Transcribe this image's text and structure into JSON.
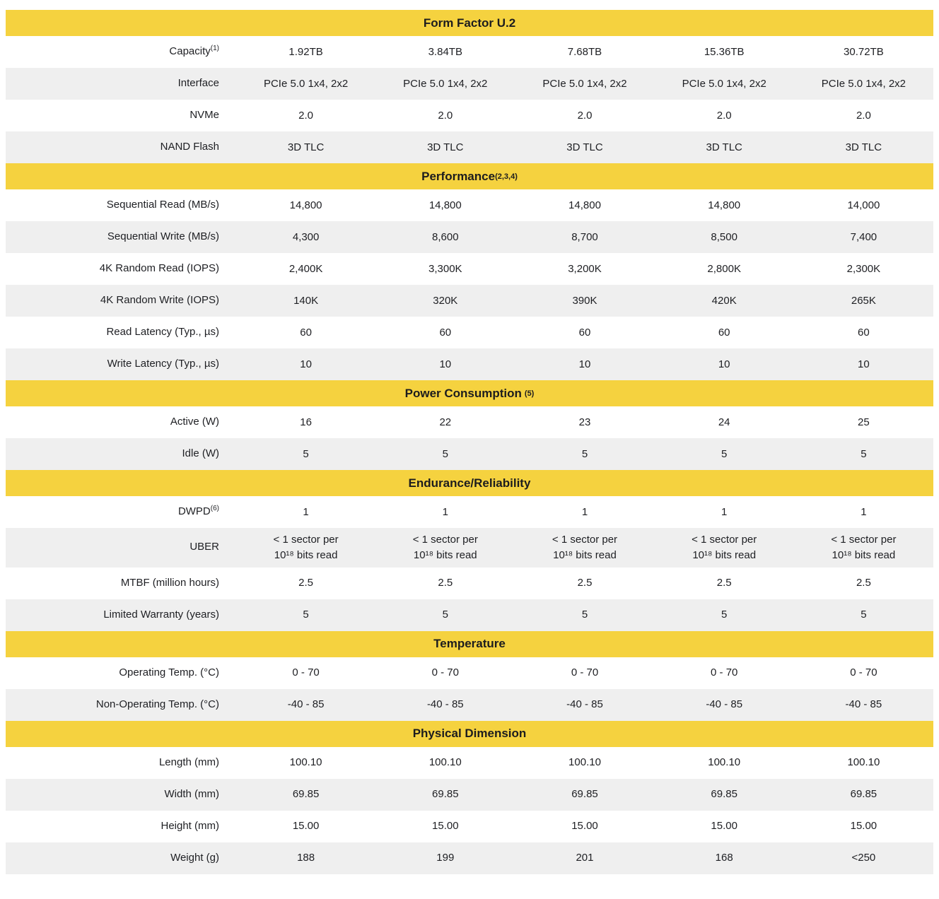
{
  "colors": {
    "section_header_bg": "#F5D23F",
    "row_alt_bg": "#EFEFEF",
    "text": "#1E1F23"
  },
  "table": {
    "sections": [
      {
        "header": "Form Factor U.2",
        "rows": [
          {
            "label": "Capacity",
            "sup": "(1)",
            "values": [
              "1.92TB",
              "3.84TB",
              "7.68TB",
              "15.36TB",
              "30.72TB"
            ]
          },
          {
            "label": "Interface",
            "values": [
              "PCIe 5.0 1x4, 2x2",
              "PCIe 5.0 1x4, 2x2",
              "PCIe 5.0 1x4, 2x2",
              "PCIe 5.0 1x4, 2x2",
              "PCIe 5.0 1x4, 2x2"
            ]
          },
          {
            "label": "NVMe",
            "values": [
              "2.0",
              "2.0",
              "2.0",
              "2.0",
              "2.0"
            ]
          },
          {
            "label": "NAND Flash",
            "values": [
              "3D TLC",
              "3D TLC",
              "3D TLC",
              "3D TLC",
              "3D TLC"
            ]
          }
        ]
      },
      {
        "header": "Performance",
        "header_sup": "(2,3,4)",
        "rows": [
          {
            "label": "Sequential Read (MB/s)",
            "values": [
              "14,800",
              "14,800",
              "14,800",
              "14,800",
              "14,000"
            ]
          },
          {
            "label": "Sequential Write (MB/s)",
            "values": [
              "4,300",
              "8,600",
              "8,700",
              "8,500",
              "7,400"
            ]
          },
          {
            "label": "4K Random Read (IOPS)",
            "values": [
              "2,400K",
              "3,300K",
              "3,200K",
              "2,800K",
              "2,300K"
            ]
          },
          {
            "label": "4K Random Write (IOPS)",
            "values": [
              "140K",
              "320K",
              "390K",
              "420K",
              "265K"
            ]
          },
          {
            "label": "Read Latency (Typ., µs)",
            "values": [
              "60",
              "60",
              "60",
              "60",
              "60"
            ]
          },
          {
            "label": "Write Latency (Typ., µs)",
            "values": [
              "10",
              "10",
              "10",
              "10",
              "10"
            ]
          }
        ]
      },
      {
        "header": "Power Consumption",
        "header_sup": "(5)",
        "header_sup_gap": true,
        "rows": [
          {
            "label": "Active (W)",
            "values": [
              "16",
              "22",
              "23",
              "24",
              "25"
            ]
          },
          {
            "label": "Idle (W)",
            "values": [
              "5",
              "5",
              "5",
              "5",
              "5"
            ]
          }
        ]
      },
      {
        "header": "Endurance/Reliability",
        "rows": [
          {
            "label": "DWPD",
            "sup": "(6)",
            "values": [
              "1",
              "1",
              "1",
              "1",
              "1"
            ]
          },
          {
            "label": "UBER",
            "values": [
              "< 1 sector per\n10¹⁸ bits read",
              "< 1 sector per\n10¹⁸ bits read",
              "< 1 sector per\n10¹⁸ bits read",
              "< 1 sector per\n10¹⁸ bits read",
              "< 1 sector per\n10¹⁸ bits read"
            ]
          },
          {
            "label": "MTBF (million hours)",
            "values": [
              "2.5",
              "2.5",
              "2.5",
              "2.5",
              "2.5"
            ]
          },
          {
            "label": "Limited Warranty (years)",
            "values": [
              "5",
              "5",
              "5",
              "5",
              "5"
            ]
          }
        ]
      },
      {
        "header": "Temperature",
        "rows": [
          {
            "label": "Operating Temp. (°C)",
            "values": [
              "0 - 70",
              "0 - 70",
              "0 - 70",
              "0 - 70",
              "0 - 70"
            ]
          },
          {
            "label": "Non-Operating Temp. (°C)",
            "values": [
              "-40 - 85",
              "-40 - 85",
              "-40 - 85",
              "-40 - 85",
              "-40 - 85"
            ]
          }
        ]
      },
      {
        "header": "Physical Dimension",
        "rows": [
          {
            "label": "Length (mm)",
            "values": [
              "100.10",
              "100.10",
              "100.10",
              "100.10",
              "100.10"
            ]
          },
          {
            "label": "Width (mm)",
            "values": [
              "69.85",
              "69.85",
              "69.85",
              "69.85",
              "69.85"
            ]
          },
          {
            "label": "Height (mm)",
            "values": [
              "15.00",
              "15.00",
              "15.00",
              "15.00",
              "15.00"
            ]
          },
          {
            "label": "Weight (g)",
            "values": [
              "188",
              "199",
              "201",
              "168",
              "<250"
            ]
          }
        ]
      }
    ]
  }
}
